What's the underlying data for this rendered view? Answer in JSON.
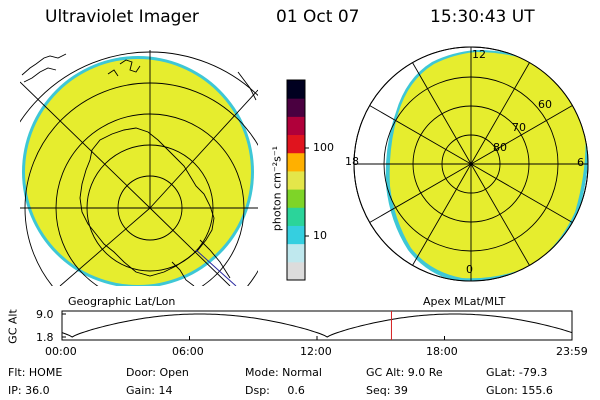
{
  "header": {
    "title": "Ultraviolet Imager",
    "date": "01 Oct 07",
    "time": "15:30:43 UT"
  },
  "left_panel": {
    "label": "Geographic Lat/Lon"
  },
  "right_panel": {
    "label": "Apex MLat/MLT",
    "mlt_labels": {
      "top": "12",
      "left": "18",
      "right": "6",
      "bottom": "0"
    },
    "lat_labels": [
      "60",
      "70",
      "80"
    ]
  },
  "colorbar": {
    "unit_label": "photon cm⁻²s⁻¹",
    "tick_labels": [
      "100",
      "10"
    ],
    "colors": [
      "#dcdcdc",
      "#bfe8ee",
      "#35cfe0",
      "#2bd49a",
      "#7ed428",
      "#e4e64a",
      "#ffb000",
      "#e0141e",
      "#b0003a",
      "#4a0040",
      "#000020"
    ]
  },
  "altitude_plot": {
    "axis_label": "GC Alt",
    "y_ticks": [
      "9.0",
      "1.8"
    ],
    "x_ticks": [
      "00:00",
      "06:00",
      "12:00",
      "18:00",
      "23:59"
    ],
    "current_time_marker_fraction": 0.646
  },
  "info": [
    {
      "key": "flt",
      "text": "Flt: HOME"
    },
    {
      "key": "door",
      "text": "Door: Open"
    },
    {
      "key": "mode",
      "text": "Mode: Normal"
    },
    {
      "key": "gcalt",
      "text": "GC Alt: 9.0 Re"
    },
    {
      "key": "glat",
      "text": "GLat: -79.3"
    },
    {
      "key": "ip",
      "text": "IP: 36.0"
    },
    {
      "key": "gain",
      "text": "Gain: 14"
    },
    {
      "key": "dsp",
      "text": "Dsp:     0.6"
    },
    {
      "key": "seq",
      "text": "Seq: 39"
    },
    {
      "key": "glon",
      "text": "GLon: 155.6"
    }
  ],
  "colors": {
    "image_fill": "#e6ed2e",
    "image_edge": "#3ec7d6",
    "coastline": "#000000",
    "marker_red": "#d42020"
  }
}
